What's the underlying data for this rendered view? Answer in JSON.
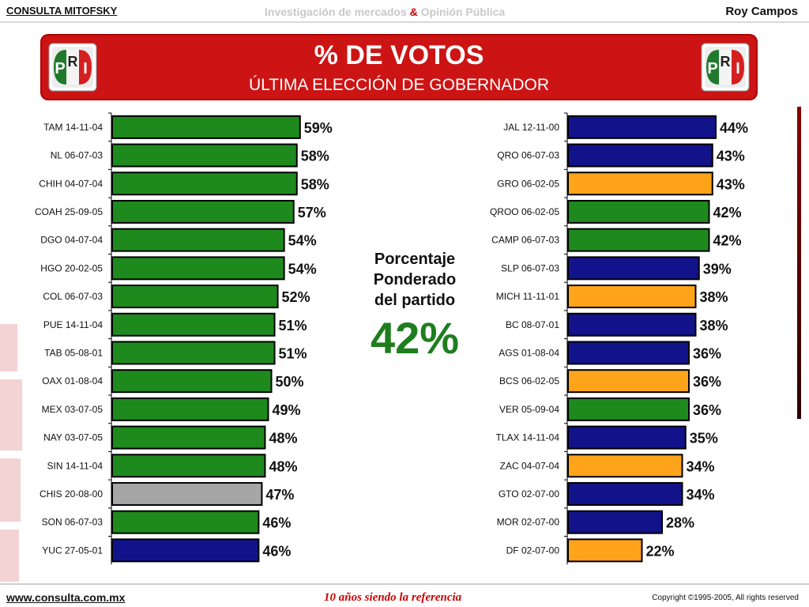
{
  "header": {
    "brand": "CONSULTA MITOFSKY",
    "tagline_part1": "Investigación de mercados",
    "tagline_amp": "&",
    "tagline_part2": "Opinión Pública",
    "author": "Roy Campos"
  },
  "banner": {
    "title": "% DE VOTOS",
    "subtitle": "ÚLTIMA ELECCIÓN DE GOBERNADOR",
    "logo_text": [
      "P",
      "R",
      "I"
    ],
    "colors": {
      "background": "#cc1414",
      "logo_green": "#1f7a2c",
      "logo_red": "#d42020"
    }
  },
  "center": {
    "label_line1": "Porcentaje",
    "label_line2": "Ponderado",
    "label_line3": "del partido",
    "value": "42%"
  },
  "chart_data": [
    {
      "type": "bar",
      "orientation": "horizontal",
      "categories": [
        "TAM 14-11-04",
        "NL 06-07-03",
        "CHIH 04-07-04",
        "COAH 25-09-05",
        "DGO 04-07-04",
        "HGO 20-02-05",
        "COL 06-07-03",
        "PUE 14-11-04",
        "TAB 05-08-01",
        "OAX 01-08-04",
        "MEX 03-07-05",
        "NAY 03-07-05",
        "SIN 14-11-04",
        "CHIS 20-08-00",
        "SON 06-07-03",
        "YUC 27-05-01"
      ],
      "values": [
        59,
        58,
        58,
        57,
        54,
        54,
        52,
        51,
        51,
        50,
        49,
        48,
        48,
        47,
        46,
        46
      ],
      "value_labels": [
        "59%",
        "58%",
        "58%",
        "57%",
        "54%",
        "54%",
        "52%",
        "51%",
        "51%",
        "50%",
        "49%",
        "48%",
        "48%",
        "47%",
        "46%",
        "46%"
      ],
      "bar_colors": [
        "green",
        "green",
        "green",
        "green",
        "green",
        "green",
        "green",
        "green",
        "green",
        "green",
        "green",
        "green",
        "green",
        "gray",
        "green",
        "navy"
      ]
    },
    {
      "type": "bar",
      "orientation": "horizontal",
      "categories": [
        "JAL 12-11-00",
        "QRO 06-07-03",
        "GRO 06-02-05",
        "QROO 06-02-05",
        "CAMP 06-07-03",
        "SLP 06-07-03",
        "MICH 11-11-01",
        "BC 08-07-01",
        "AGS 01-08-04",
        "BCS 06-02-05",
        "VER 05-09-04",
        "TLAX 14-11-04",
        "ZAC 04-07-04",
        "GTO 02-07-00",
        "MOR 02-07-00",
        "DF 02-07-00"
      ],
      "values": [
        44,
        43,
        43,
        42,
        42,
        39,
        38,
        38,
        36,
        36,
        36,
        35,
        34,
        34,
        28,
        22
      ],
      "value_labels": [
        "44%",
        "43%",
        "43%",
        "42%",
        "42%",
        "39%",
        "38%",
        "38%",
        "36%",
        "36%",
        "36%",
        "35%",
        "34%",
        "34%",
        "28%",
        "22%"
      ],
      "bar_colors": [
        "navy",
        "navy",
        "orange",
        "green",
        "green",
        "navy",
        "orange",
        "navy",
        "navy",
        "orange",
        "green",
        "navy",
        "orange",
        "navy",
        "navy",
        "orange"
      ]
    }
  ],
  "palette": {
    "green": "#1e8a1e",
    "navy": "#12138a",
    "orange": "#ffa31a",
    "gray": "#a6a6a6"
  },
  "footer": {
    "url": "www.consulta.com.mx",
    "slogan": "10 años siendo la referencia",
    "copyright": "Copyright ©1995-2005, All rights reserved"
  }
}
